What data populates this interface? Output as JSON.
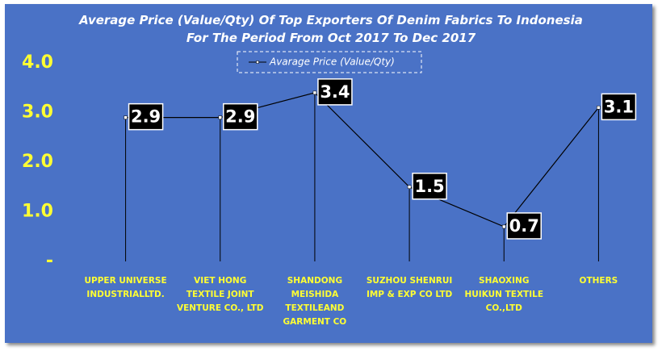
{
  "chart_data": {
    "type": "line",
    "title": "Average Price (Value/Qty) Of Top Exporters Of Denim Fabrics To Indonesia For The Period From Oct 2017 To Dec 2017",
    "categories": [
      "UPPER UNIVERSE INDUSTRIALLTD.",
      "VIET HONG TEXTILE JOINT VENTURE CO., LTD",
      "SHANDONG MEISHIDA TEXTILEAND GARMENT CO",
      "SUZHOU SHENRUI IMP & EXP CO LTD",
      "SHAOXING HUIKUN TEXTILE CO.,LTD",
      "OTHERS"
    ],
    "series": [
      {
        "name": "Avarage Price (Value/Qty)",
        "color": "#000000",
        "values": [
          2.9,
          2.9,
          3.4,
          1.5,
          0.7,
          3.1
        ]
      }
    ],
    "ylim": [
      0,
      4
    ],
    "yticks": [
      {
        "value": 0,
        "label": "-"
      },
      {
        "value": 1,
        "label": "1.0"
      },
      {
        "value": 2,
        "label": "2.0"
      },
      {
        "value": 3,
        "label": "3.0"
      },
      {
        "value": 4,
        "label": "4.0"
      }
    ],
    "legend": "top"
  }
}
